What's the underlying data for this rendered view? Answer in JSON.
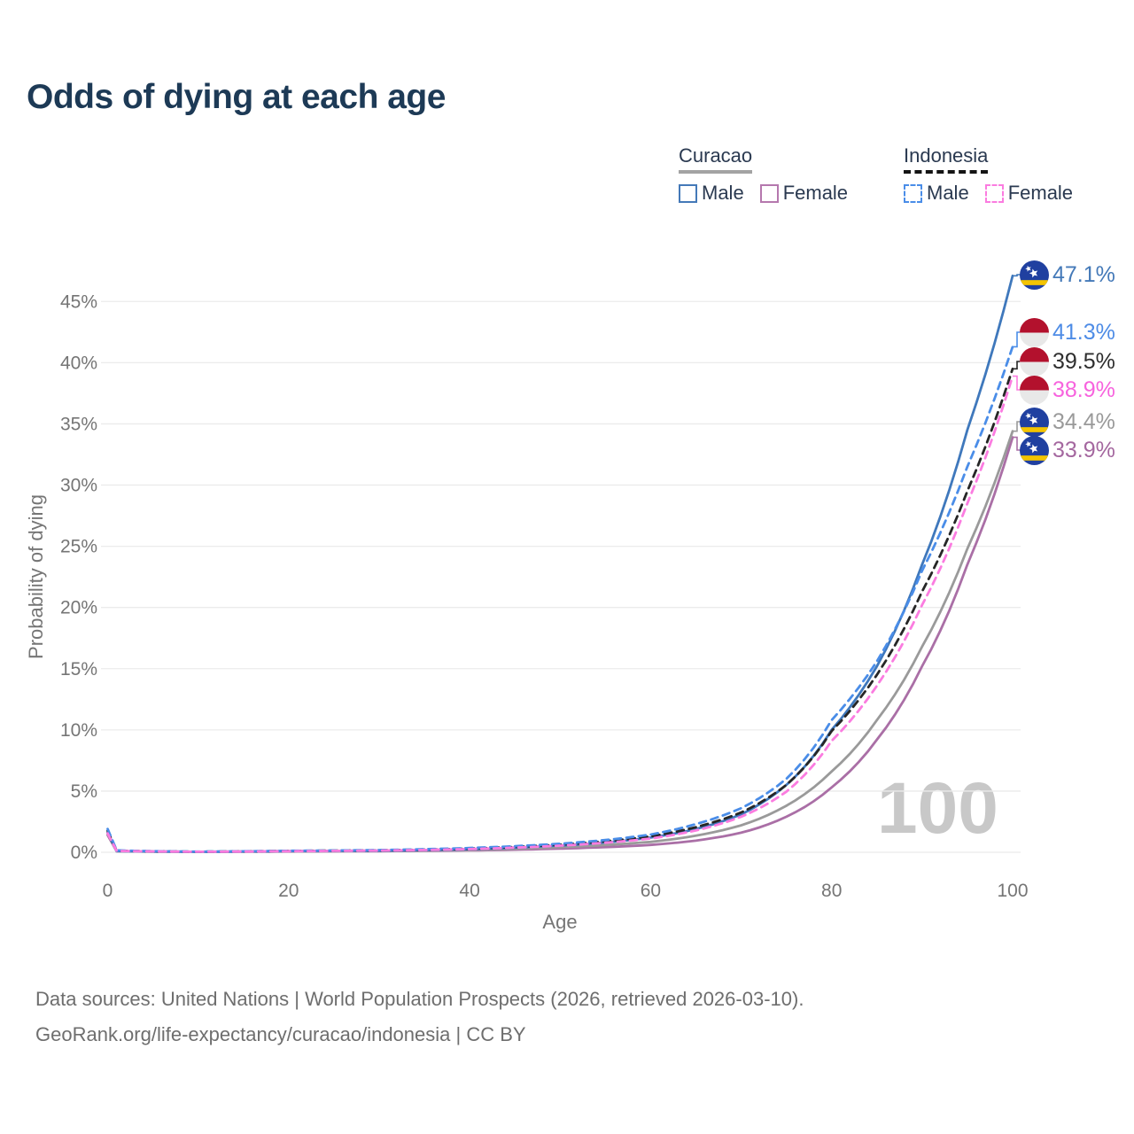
{
  "title": "Odds of dying at each age",
  "watermark_age": "100",
  "legend": {
    "groups": [
      {
        "country": "Curacao",
        "style": "solid",
        "style_color": "#a3a3a3",
        "items": [
          {
            "label": "Male",
            "color": "#4479b8"
          },
          {
            "label": "Female",
            "color": "#b578ae"
          }
        ]
      },
      {
        "country": "Indonesia",
        "style": "dashed",
        "style_color": "#141414",
        "items": [
          {
            "label": "Male",
            "color": "#4a8de8"
          },
          {
            "label": "Female",
            "color": "#fb7ce0"
          }
        ]
      }
    ]
  },
  "footer": {
    "line1": "Data sources: United Nations | World Population Prospects (2026, retrieved 2026-03-10).",
    "line2": "GeoRank.org/life-expectancy/curacao/indonesia | CC BY"
  },
  "theme": {
    "title_color": "#1d3a56",
    "axis_text_color": "#757575",
    "grid_color": "#ebebeb",
    "watermark_color": "#c8c8c8",
    "footer_color": "#6e6e6e",
    "legend_text_color": "#2a3950"
  },
  "flags": {
    "curacao": {
      "field": "#2040a0",
      "stripe": "#f4c400",
      "stars": "#ffffff"
    },
    "indonesia": {
      "top": "#b3112d",
      "bottom": "#e8e8e8"
    }
  },
  "chart_data": {
    "type": "line",
    "title": "Odds of dying at each age",
    "xlabel": "Age",
    "ylabel": "Probability of dying",
    "xlim": [
      0,
      100
    ],
    "ylim_percent": [
      0,
      47.5
    ],
    "x_ticks": [
      "0",
      "20",
      "40",
      "60",
      "80",
      "100"
    ],
    "y_ticks": [
      "0%",
      "5%",
      "10%",
      "15%",
      "20%",
      "25%",
      "30%",
      "35%",
      "40%",
      "45%"
    ],
    "grid": "horizontal-only",
    "legend_position": "top-right",
    "age_indicator": "100",
    "series": [
      {
        "id": "curacao-male",
        "name": "Curacao Male",
        "country": "Curacao",
        "sex": "Male",
        "style": "solid",
        "color": "#3f78bc",
        "label_color": "#4479b8",
        "flag": "curacao",
        "end_label": "47.1%",
        "end_value": 47.1,
        "points": [
          [
            0,
            1.6
          ],
          [
            1,
            0.1
          ],
          [
            10,
            0.04
          ],
          [
            20,
            0.1
          ],
          [
            30,
            0.13
          ],
          [
            40,
            0.25
          ],
          [
            45,
            0.38
          ],
          [
            50,
            0.55
          ],
          [
            55,
            0.8
          ],
          [
            60,
            1.2
          ],
          [
            65,
            1.9
          ],
          [
            70,
            3.1
          ],
          [
            75,
            5.5
          ],
          [
            80,
            10.0
          ],
          [
            85,
            15.2
          ],
          [
            90,
            23.5
          ],
          [
            95,
            34.5
          ],
          [
            100,
            47.1
          ]
        ]
      },
      {
        "id": "indonesia-male",
        "name": "Indonesia Male",
        "country": "Indonesia",
        "sex": "Male",
        "style": "dashed",
        "color": "#4a8de8",
        "label_color": "#4e8ce6",
        "flag": "indonesia",
        "end_label": "41.3%",
        "end_value": 41.3,
        "points": [
          [
            0,
            1.9
          ],
          [
            1,
            0.15
          ],
          [
            10,
            0.05
          ],
          [
            20,
            0.12
          ],
          [
            30,
            0.18
          ],
          [
            40,
            0.35
          ],
          [
            45,
            0.5
          ],
          [
            50,
            0.7
          ],
          [
            55,
            1.0
          ],
          [
            60,
            1.45
          ],
          [
            65,
            2.3
          ],
          [
            70,
            3.6
          ],
          [
            75,
            6.0
          ],
          [
            80,
            10.8
          ],
          [
            85,
            15.6
          ],
          [
            90,
            23.0
          ],
          [
            95,
            31.5
          ],
          [
            100,
            41.3
          ]
        ]
      },
      {
        "id": "indonesia-both",
        "name": "Indonesia (both sexes)",
        "country": "Indonesia",
        "sex": "Both",
        "style": "dashed",
        "color": "#262626",
        "label_color": "#2e2e2e",
        "flag": "indonesia",
        "end_label": "39.5%",
        "end_value": 39.5,
        "points": [
          [
            0,
            1.75
          ],
          [
            1,
            0.13
          ],
          [
            10,
            0.045
          ],
          [
            20,
            0.11
          ],
          [
            30,
            0.16
          ],
          [
            40,
            0.3
          ],
          [
            45,
            0.44
          ],
          [
            50,
            0.62
          ],
          [
            55,
            0.9
          ],
          [
            60,
            1.3
          ],
          [
            65,
            2.05
          ],
          [
            70,
            3.25
          ],
          [
            75,
            5.5
          ],
          [
            80,
            9.9
          ],
          [
            85,
            14.5
          ],
          [
            90,
            21.3
          ],
          [
            95,
            29.5
          ],
          [
            100,
            39.5
          ]
        ]
      },
      {
        "id": "indonesia-female",
        "name": "Indonesia Female",
        "country": "Indonesia",
        "sex": "Female",
        "style": "dashed",
        "color": "#fb7ce0",
        "label_color": "#f763de",
        "flag": "indonesia",
        "end_label": "38.9%",
        "end_value": 38.9,
        "points": [
          [
            0,
            1.55
          ],
          [
            1,
            0.11
          ],
          [
            10,
            0.04
          ],
          [
            20,
            0.09
          ],
          [
            30,
            0.14
          ],
          [
            40,
            0.26
          ],
          [
            45,
            0.38
          ],
          [
            50,
            0.54
          ],
          [
            55,
            0.78
          ],
          [
            60,
            1.12
          ],
          [
            65,
            1.78
          ],
          [
            70,
            2.9
          ],
          [
            75,
            4.95
          ],
          [
            80,
            9.1
          ],
          [
            85,
            13.6
          ],
          [
            90,
            20.2
          ],
          [
            95,
            28.5
          ],
          [
            100,
            38.9
          ]
        ]
      },
      {
        "id": "curacao-both",
        "name": "Curacao (both sexes)",
        "country": "Curacao",
        "sex": "Both",
        "style": "solid",
        "color": "#9a9a9a",
        "label_color": "#9a9a9a",
        "flag": "curacao",
        "end_label": "34.4%",
        "end_value": 34.4,
        "points": [
          [
            0,
            1.5
          ],
          [
            1,
            0.09
          ],
          [
            10,
            0.035
          ],
          [
            20,
            0.08
          ],
          [
            30,
            0.11
          ],
          [
            40,
            0.2
          ],
          [
            45,
            0.29
          ],
          [
            50,
            0.42
          ],
          [
            55,
            0.6
          ],
          [
            60,
            0.85
          ],
          [
            65,
            1.35
          ],
          [
            70,
            2.2
          ],
          [
            75,
            3.8
          ],
          [
            80,
            6.6
          ],
          [
            85,
            10.8
          ],
          [
            90,
            16.8
          ],
          [
            95,
            24.8
          ],
          [
            100,
            34.4
          ]
        ]
      },
      {
        "id": "curacao-female",
        "name": "Curacao Female",
        "country": "Curacao",
        "sex": "Female",
        "style": "solid",
        "color": "#aa6fa6",
        "label_color": "#a4679f",
        "flag": "curacao",
        "end_label": "33.9%",
        "end_value": 33.9,
        "points": [
          [
            0,
            1.4
          ],
          [
            1,
            0.08
          ],
          [
            10,
            0.03
          ],
          [
            20,
            0.06
          ],
          [
            30,
            0.09
          ],
          [
            40,
            0.15
          ],
          [
            45,
            0.21
          ],
          [
            50,
            0.3
          ],
          [
            55,
            0.42
          ],
          [
            60,
            0.6
          ],
          [
            65,
            0.95
          ],
          [
            70,
            1.6
          ],
          [
            75,
            2.9
          ],
          [
            80,
            5.3
          ],
          [
            85,
            9.2
          ],
          [
            90,
            15.2
          ],
          [
            95,
            23.5
          ],
          [
            100,
            33.9
          ]
        ]
      }
    ]
  }
}
